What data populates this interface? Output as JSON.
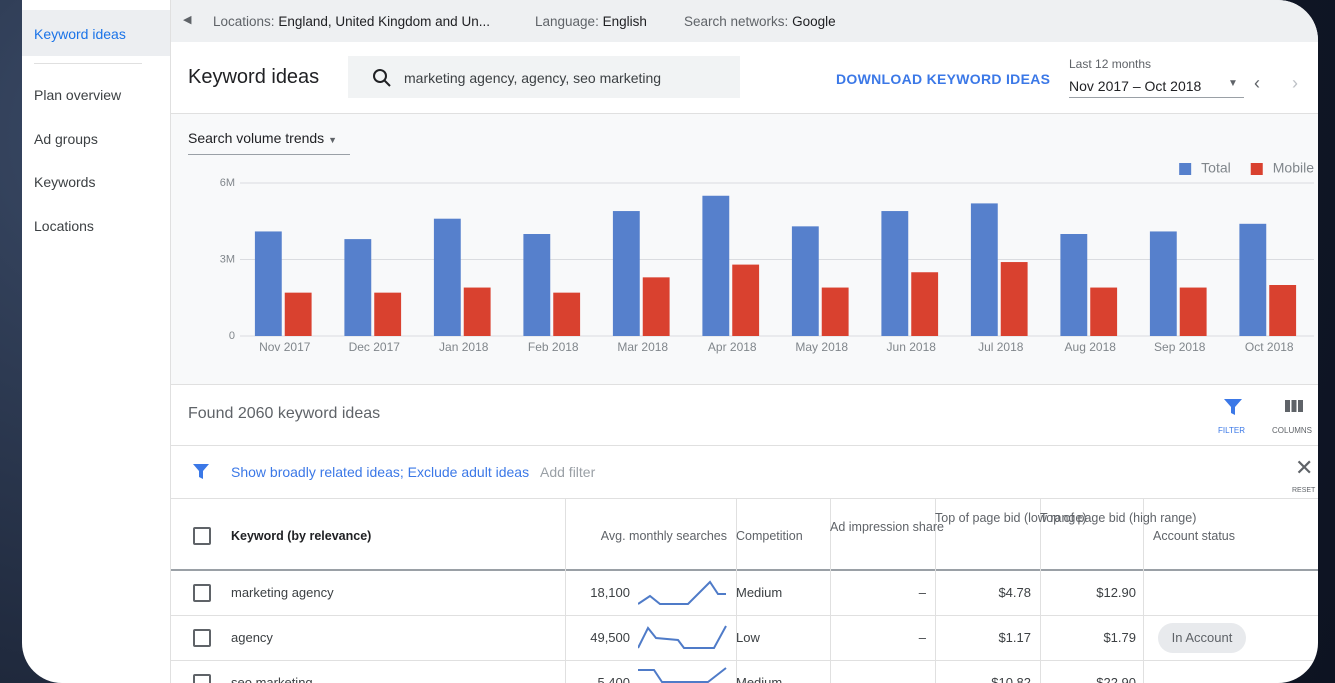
{
  "sidebar": {
    "items": [
      "Keyword ideas",
      "Plan overview",
      "Ad groups",
      "Keywords",
      "Locations"
    ]
  },
  "top_bar": {
    "locations_label": "Locations:",
    "locations": "England, United Kingdom and Un...",
    "language_label": "Language:",
    "language": "English",
    "networks_label": "Search networks:",
    "networks": "Google"
  },
  "header": {
    "title": "Keyword ideas",
    "search": "marketing agency, agency, seo marketing",
    "download": "DOWNLOAD KEYWORD IDEAS",
    "range_label": "Last 12 months",
    "range": "Nov 2017 – Oct 2018"
  },
  "chart_data": {
    "type": "bar",
    "dropdown": "Search volume trends",
    "categories": [
      "Nov 2017",
      "Dec 2017",
      "Jan 2018",
      "Feb 2018",
      "Mar 2018",
      "Apr 2018",
      "May 2018",
      "Jun 2018",
      "Jul 2018",
      "Aug 2018",
      "Sep 2018",
      "Oct 2018"
    ],
    "series": [
      {
        "name": "Total",
        "color": "#5680cc",
        "values": [
          4100000,
          3800000,
          4600000,
          4000000,
          4900000,
          5500000,
          4300000,
          4900000,
          5200000,
          4000000,
          4100000,
          4400000
        ]
      },
      {
        "name": "Mobile",
        "color": "#d9412f",
        "values": [
          1700000,
          1700000,
          1900000,
          1700000,
          2300000,
          2800000,
          1900000,
          2500000,
          2900000,
          1900000,
          1900000,
          2000000
        ]
      }
    ],
    "ylim": [
      0,
      6000000
    ],
    "yticks": [
      0,
      {
        "value": 3000000,
        "label": "3M"
      },
      {
        "value": 6000000,
        "label": "6M"
      }
    ],
    "grid": true,
    "legend": "top-right"
  },
  "results": {
    "found": "Found 2060 keyword ideas",
    "filter": "FILTER",
    "columns": "COLUMNS"
  },
  "filters": {
    "active": "Show broadly related ideas; Exclude adult ideas",
    "add": "Add filter",
    "reset": "RESET"
  },
  "table": {
    "headers": [
      "Keyword (by relevance)",
      "Avg. monthly searches",
      "Competition",
      "Ad impression share",
      "Top of page bid (low range)",
      "Top of page bid (high range)",
      "Account status"
    ],
    "rows": [
      [
        "marketing agency",
        "18,100",
        "Medium",
        "–",
        "$4.78",
        "$12.90",
        null
      ],
      [
        "agency",
        "49,500",
        "Low",
        "–",
        "$1.17",
        "$1.79",
        "In Account"
      ],
      [
        "seo marketing",
        "5,400",
        "Medium",
        "–",
        "$10.82",
        "$22.90",
        null
      ]
    ]
  }
}
